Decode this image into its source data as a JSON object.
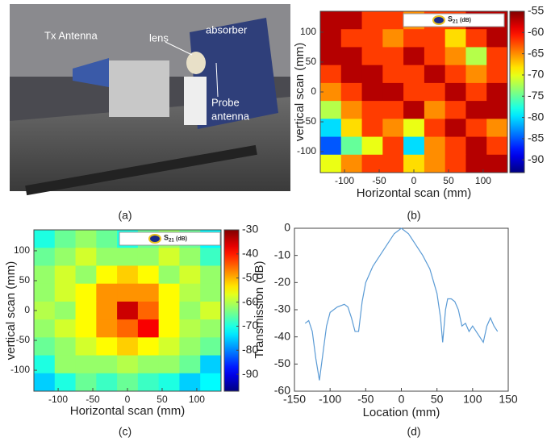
{
  "photo": {
    "labels": {
      "tx": "Tx Antenna",
      "lens": "lens",
      "absorber": "absorber",
      "probe1": "Probe",
      "probe2": "antenna"
    },
    "caption": "(a)"
  },
  "chart_data": [
    {
      "type": "heatmap",
      "xlabel": "Horizontal scan (mm)",
      "ylabel": "vertical scan (mm)",
      "caption": "(b)",
      "x": [
        -120,
        -90,
        -60,
        -30,
        0,
        30,
        60,
        90,
        120
      ],
      "y": [
        120,
        90,
        60,
        30,
        0,
        -30,
        -60,
        -90,
        -120
      ],
      "z": [
        [
          -57,
          -57,
          -62,
          -62,
          -65,
          -62,
          -62,
          -57,
          -57
        ],
        [
          -57,
          -62,
          -62,
          -65,
          -62,
          -62,
          -68,
          -62,
          -57
        ],
        [
          -57,
          -57,
          -62,
          -62,
          -57,
          -62,
          -65,
          -72,
          -62
        ],
        [
          -62,
          -57,
          -57,
          -62,
          -62,
          -57,
          -62,
          -65,
          -62
        ],
        [
          -65,
          -62,
          -57,
          -57,
          -62,
          -62,
          -57,
          -62,
          -57
        ],
        [
          -72,
          -65,
          -62,
          -62,
          -57,
          -65,
          -62,
          -57,
          -57
        ],
        [
          -80,
          -68,
          -62,
          -65,
          -70,
          -62,
          -57,
          -62,
          -65
        ],
        [
          -85,
          -75,
          -70,
          -62,
          -80,
          -65,
          -62,
          -57,
          -62
        ],
        [
          -70,
          -65,
          -62,
          -62,
          -68,
          -65,
          -62,
          -57,
          -57
        ]
      ],
      "xlim": [
        -135,
        135
      ],
      "ylim": [
        -135,
        135
      ],
      "xticks": [
        -100,
        -50,
        0,
        50,
        100
      ],
      "yticks": [
        -100,
        -50,
        0,
        50,
        100
      ],
      "colormap": "jet",
      "clim": [
        -93,
        -55
      ],
      "cticks": [
        -90,
        -85,
        -80,
        -75,
        -70,
        -65,
        -60,
        -55
      ],
      "legend": [
        "S",
        "21",
        "(dB)"
      ]
    },
    {
      "type": "heatmap",
      "xlabel": "Horizontal scan (mm)",
      "ylabel": "vertical scan (mm)",
      "caption": "(c)",
      "x": [
        -120,
        -90,
        -60,
        -30,
        0,
        30,
        60,
        90,
        120
      ],
      "y": [
        120,
        90,
        60,
        30,
        0,
        -30,
        -60,
        -90,
        -120
      ],
      "z": [
        [
          -70,
          -65,
          -62,
          -65,
          -70,
          -65,
          -62,
          -65,
          -72
        ],
        [
          -65,
          -62,
          -58,
          -62,
          -62,
          -62,
          -58,
          -62,
          -68
        ],
        [
          -62,
          -58,
          -62,
          -55,
          -52,
          -55,
          -62,
          -58,
          -62
        ],
        [
          -62,
          -58,
          -55,
          -48,
          -48,
          -48,
          -55,
          -60,
          -62
        ],
        [
          -60,
          -62,
          -55,
          -48,
          -35,
          -45,
          -55,
          -62,
          -58
        ],
        [
          -62,
          -58,
          -55,
          -48,
          -45,
          -38,
          -55,
          -60,
          -62
        ],
        [
          -65,
          -62,
          -58,
          -55,
          -52,
          -55,
          -58,
          -62,
          -65
        ],
        [
          -70,
          -62,
          -62,
          -62,
          -60,
          -62,
          -62,
          -65,
          -75
        ],
        [
          -75,
          -70,
          -65,
          -68,
          -65,
          -68,
          -70,
          -75,
          -72
        ]
      ],
      "xlim": [
        -135,
        135
      ],
      "ylim": [
        -135,
        135
      ],
      "xticks": [
        -100,
        -50,
        0,
        50,
        100
      ],
      "yticks": [
        -100,
        -50,
        0,
        50,
        100
      ],
      "colormap": "jet",
      "clim": [
        -97,
        -30
      ],
      "cticks": [
        -90,
        -80,
        -70,
        -60,
        -50,
        -40,
        -30
      ],
      "legend": [
        "S",
        "21",
        "(dB)"
      ]
    },
    {
      "type": "line",
      "xlabel": "Location (mm)",
      "ylabel": "Transmission  (dB)",
      "caption": "(d)",
      "color": "#5b9bd5",
      "x": [
        -135,
        -130,
        -125,
        -120,
        -115,
        -110,
        -105,
        -100,
        -90,
        -80,
        -75,
        -70,
        -65,
        -60,
        -55,
        -50,
        -40,
        -30,
        -20,
        -10,
        0,
        10,
        20,
        30,
        40,
        50,
        55,
        58,
        62,
        65,
        70,
        75,
        80,
        85,
        90,
        95,
        100,
        110,
        115,
        120,
        125,
        130,
        135
      ],
      "values": [
        -35,
        -34,
        -38,
        -48,
        -56,
        -46,
        -36,
        -31,
        -29,
        -28,
        -29,
        -33,
        -38,
        -38,
        -27,
        -20,
        -14,
        -10,
        -6,
        -2,
        0,
        -2,
        -6,
        -10,
        -15,
        -24,
        -33,
        -42,
        -30,
        -26,
        -26,
        -27,
        -30,
        -36,
        -35,
        -38,
        -36,
        -40,
        -42,
        -36,
        -33,
        -36,
        -38
      ],
      "xlim": [
        -150,
        150
      ],
      "ylim": [
        -60,
        0
      ],
      "xticks": [
        -150,
        -100,
        -50,
        0,
        50,
        100,
        150
      ],
      "yticks": [
        -60,
        -50,
        -40,
        -30,
        -20,
        -10,
        0
      ]
    }
  ]
}
